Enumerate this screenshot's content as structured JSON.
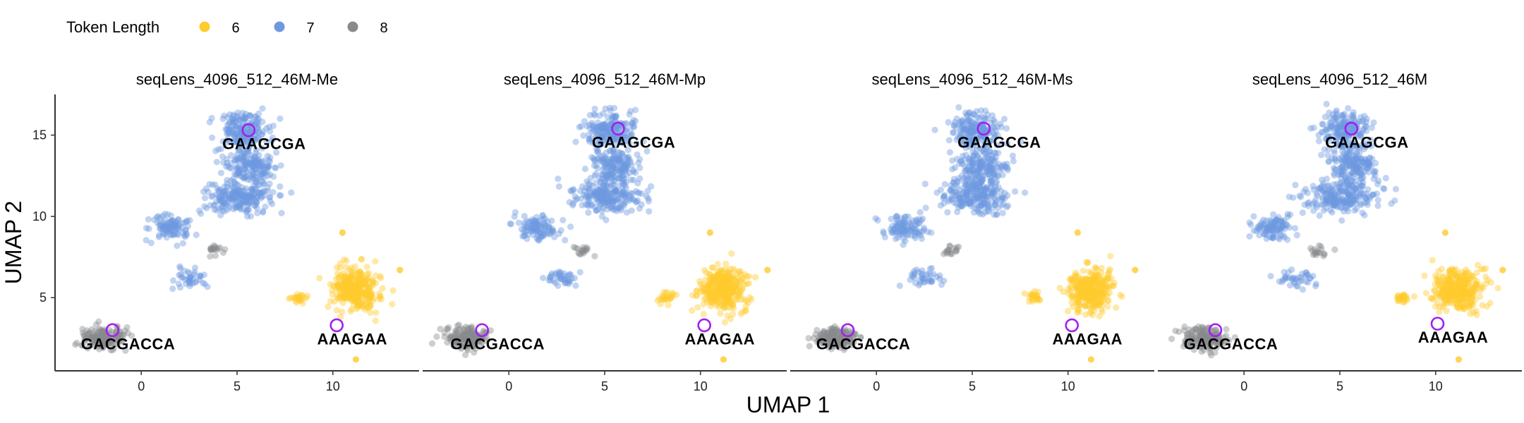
{
  "legend": {
    "title": "Token Length",
    "entries": [
      {
        "label": "6",
        "color": "#FFCB2E"
      },
      {
        "label": "7",
        "color": "#6E99E0"
      },
      {
        "label": "8",
        "color": "#888A8C"
      }
    ]
  },
  "chart_data": {
    "type": "scatter",
    "xlabel": "UMAP 1",
    "ylabel": "UMAP 2",
    "xlim": [
      -4.5,
      14.5
    ],
    "ylim": [
      0.5,
      17.5
    ],
    "x_ticks": [
      0,
      5,
      10
    ],
    "y_ticks": [
      5,
      10,
      15
    ],
    "grid": false,
    "legend_position": "top-left",
    "clusters": [
      {
        "series": "7",
        "cx": 5.3,
        "cy": 15.3,
        "sx": 1.2,
        "sy": 1.0,
        "n": 180
      },
      {
        "series": "7",
        "cx": 5.6,
        "cy": 13.1,
        "sx": 1.2,
        "sy": 1.0,
        "n": 170
      },
      {
        "series": "7",
        "cx": 5.1,
        "cy": 11.2,
        "sx": 1.7,
        "sy": 0.9,
        "n": 220
      },
      {
        "series": "7",
        "cx": 1.5,
        "cy": 9.3,
        "sx": 1.0,
        "sy": 0.7,
        "n": 100
      },
      {
        "series": "7",
        "cx": 2.7,
        "cy": 6.2,
        "sx": 0.9,
        "sy": 0.5,
        "n": 40
      },
      {
        "series": "8",
        "cx": 3.9,
        "cy": 7.9,
        "sx": 0.4,
        "sy": 0.4,
        "n": 18
      },
      {
        "series": "8",
        "cx": -2.1,
        "cy": 2.5,
        "sx": 1.0,
        "sy": 0.6,
        "n": 170
      },
      {
        "series": "6",
        "cx": 11.2,
        "cy": 5.5,
        "sx": 1.1,
        "sy": 1.2,
        "n": 320
      },
      {
        "series": "6",
        "cx": 8.2,
        "cy": 5.0,
        "sx": 0.4,
        "sy": 0.3,
        "n": 25
      }
    ],
    "outliers": [
      {
        "series": "6",
        "x": 10.5,
        "y": 9.0
      },
      {
        "series": "6",
        "x": 11.2,
        "y": 1.2
      },
      {
        "series": "6",
        "x": 13.5,
        "y": 6.7
      }
    ],
    "panels": [
      {
        "title": "seqLens_4096_512_46M-Me",
        "annotations": [
          {
            "label": "GAAGCGA",
            "x": 5.6,
            "y": 15.3
          },
          {
            "label": "GACGACCA",
            "x": -1.5,
            "y": 3.0
          },
          {
            "label": "AAAGAA",
            "x": 10.2,
            "y": 3.3
          }
        ]
      },
      {
        "title": "seqLens_4096_512_46M-Mp",
        "annotations": [
          {
            "label": "GAAGCGA",
            "x": 5.7,
            "y": 15.4
          },
          {
            "label": "GACGACCA",
            "x": -1.4,
            "y": 3.0
          },
          {
            "label": "AAAGAA",
            "x": 10.2,
            "y": 3.3
          }
        ]
      },
      {
        "title": "seqLens_4096_512_46M-Ms",
        "annotations": [
          {
            "label": "GAAGCGA",
            "x": 5.6,
            "y": 15.4
          },
          {
            "label": "GACGACCA",
            "x": -1.5,
            "y": 3.0
          },
          {
            "label": "AAAGAA",
            "x": 10.2,
            "y": 3.3
          }
        ]
      },
      {
        "title": "seqLens_4096_512_46M",
        "annotations": [
          {
            "label": "GAAGCGA",
            "x": 5.6,
            "y": 15.4
          },
          {
            "label": "GACGACCA",
            "x": -1.5,
            "y": 3.0
          },
          {
            "label": "AAAGAA",
            "x": 10.1,
            "y": 3.4
          }
        ]
      }
    ]
  }
}
